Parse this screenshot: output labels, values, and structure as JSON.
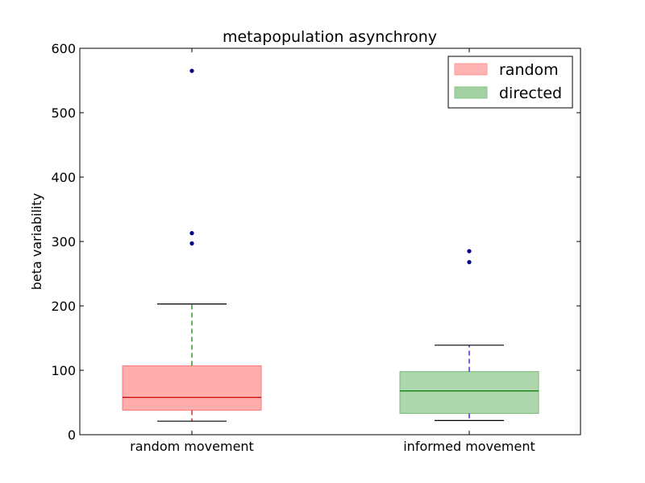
{
  "chart_data": {
    "type": "box",
    "title": "metapopulation asynchrony",
    "xlabel": "",
    "ylabel": "beta variability",
    "ylim": [
      0,
      600
    ],
    "yticks": [
      0,
      100,
      200,
      300,
      400,
      500,
      600
    ],
    "categories": [
      "random movement",
      "informed movement"
    ],
    "grid": false,
    "legend": {
      "placement": "top-right",
      "entries": [
        {
          "label": "random",
          "color": "#ff9999"
        },
        {
          "label": "directed",
          "color": "#85c285"
        }
      ]
    },
    "boxes": [
      {
        "category": "random movement",
        "whisker_low": 21,
        "q1": 38,
        "median": 58,
        "q3": 107,
        "whisker_high": 203,
        "outliers": [
          297,
          313,
          565
        ],
        "fill": "#ff9999",
        "edge": "#ff7777",
        "median_color": "#cc0000",
        "whisker_color_low": "#cc0000",
        "whisker_color_high": "#008000"
      },
      {
        "category": "informed movement",
        "whisker_low": 22,
        "q1": 33,
        "median": 68,
        "q3": 98,
        "whisker_high": 139,
        "outliers": [
          268,
          285
        ],
        "fill": "#99cc99",
        "edge": "#77bb77",
        "median_color": "#008000",
        "whisker_color_low": "#0000ff",
        "whisker_color_high": "#0000ff"
      }
    ],
    "outlier_color": "#000080"
  }
}
